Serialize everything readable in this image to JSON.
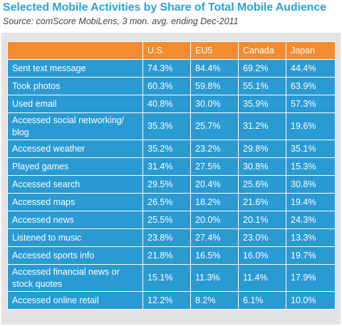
{
  "title": "Selected Mobile Activities by Share of Total Mobile Audience",
  "subtitle": "Source: comScore MobiLens, 3 mon. avg. ending Dec-2011",
  "colors": {
    "title": "#2aa3d6",
    "header_bg": "#f28c2e",
    "cell_bg": "#2a9ad3",
    "panel_bg": "#e3e3e3"
  },
  "chart_data": {
    "type": "table",
    "title": "Selected Mobile Activities by Share of Total Mobile Audience",
    "subtitle": "Source: comScore MobiLens, 3 mon. avg. ending Dec-2011",
    "columns": [
      "",
      "U.S.",
      "EU5",
      "Canada",
      "Japan"
    ],
    "rows": [
      {
        "label": "Sent text message",
        "values": [
          "74.3%",
          "84.4%",
          "69.2%",
          "44.4%"
        ]
      },
      {
        "label": "Took photos",
        "values": [
          "60.3%",
          "59.8%",
          "55.1%",
          "63.9%"
        ]
      },
      {
        "label": "Used email",
        "values": [
          "40.8%",
          "30.0%",
          "35.9%",
          "57.3%"
        ]
      },
      {
        "label": "Accessed social networking/ blog",
        "values": [
          "35.3%",
          "25.7%",
          "31.2%",
          "19.6%"
        ]
      },
      {
        "label": "Accessed weather",
        "values": [
          "35.2%",
          "23.2%",
          "29.8%",
          "35.1%"
        ]
      },
      {
        "label": "Played games",
        "values": [
          "31.4%",
          "27.5%",
          "30.8%",
          "15.3%"
        ]
      },
      {
        "label": "Accessed search",
        "values": [
          "29.5%",
          "20.4%",
          "25.6%",
          "30.8%"
        ]
      },
      {
        "label": "Accessed maps",
        "values": [
          "26.5%",
          "18.2%",
          "21.6%",
          "19.4%"
        ]
      },
      {
        "label": "Accessed news",
        "values": [
          "25.5%",
          "20.0%",
          "20.1%",
          "24.3%"
        ]
      },
      {
        "label": "Listened to music",
        "values": [
          "23.8%",
          "27.4%",
          "23.0%",
          "13.3%"
        ]
      },
      {
        "label": "Accessed sports info",
        "values": [
          "21.8%",
          "16.5%",
          "16.0%",
          "19.7%"
        ]
      },
      {
        "label": "Accessed financial news or stock quotes",
        "values": [
          "15.1%",
          "11.3%",
          "11.4%",
          "17.9%"
        ]
      },
      {
        "label": "Accessed online retail",
        "values": [
          "12.2%",
          "8.2%",
          "6.1%",
          "10.0%"
        ]
      }
    ]
  }
}
